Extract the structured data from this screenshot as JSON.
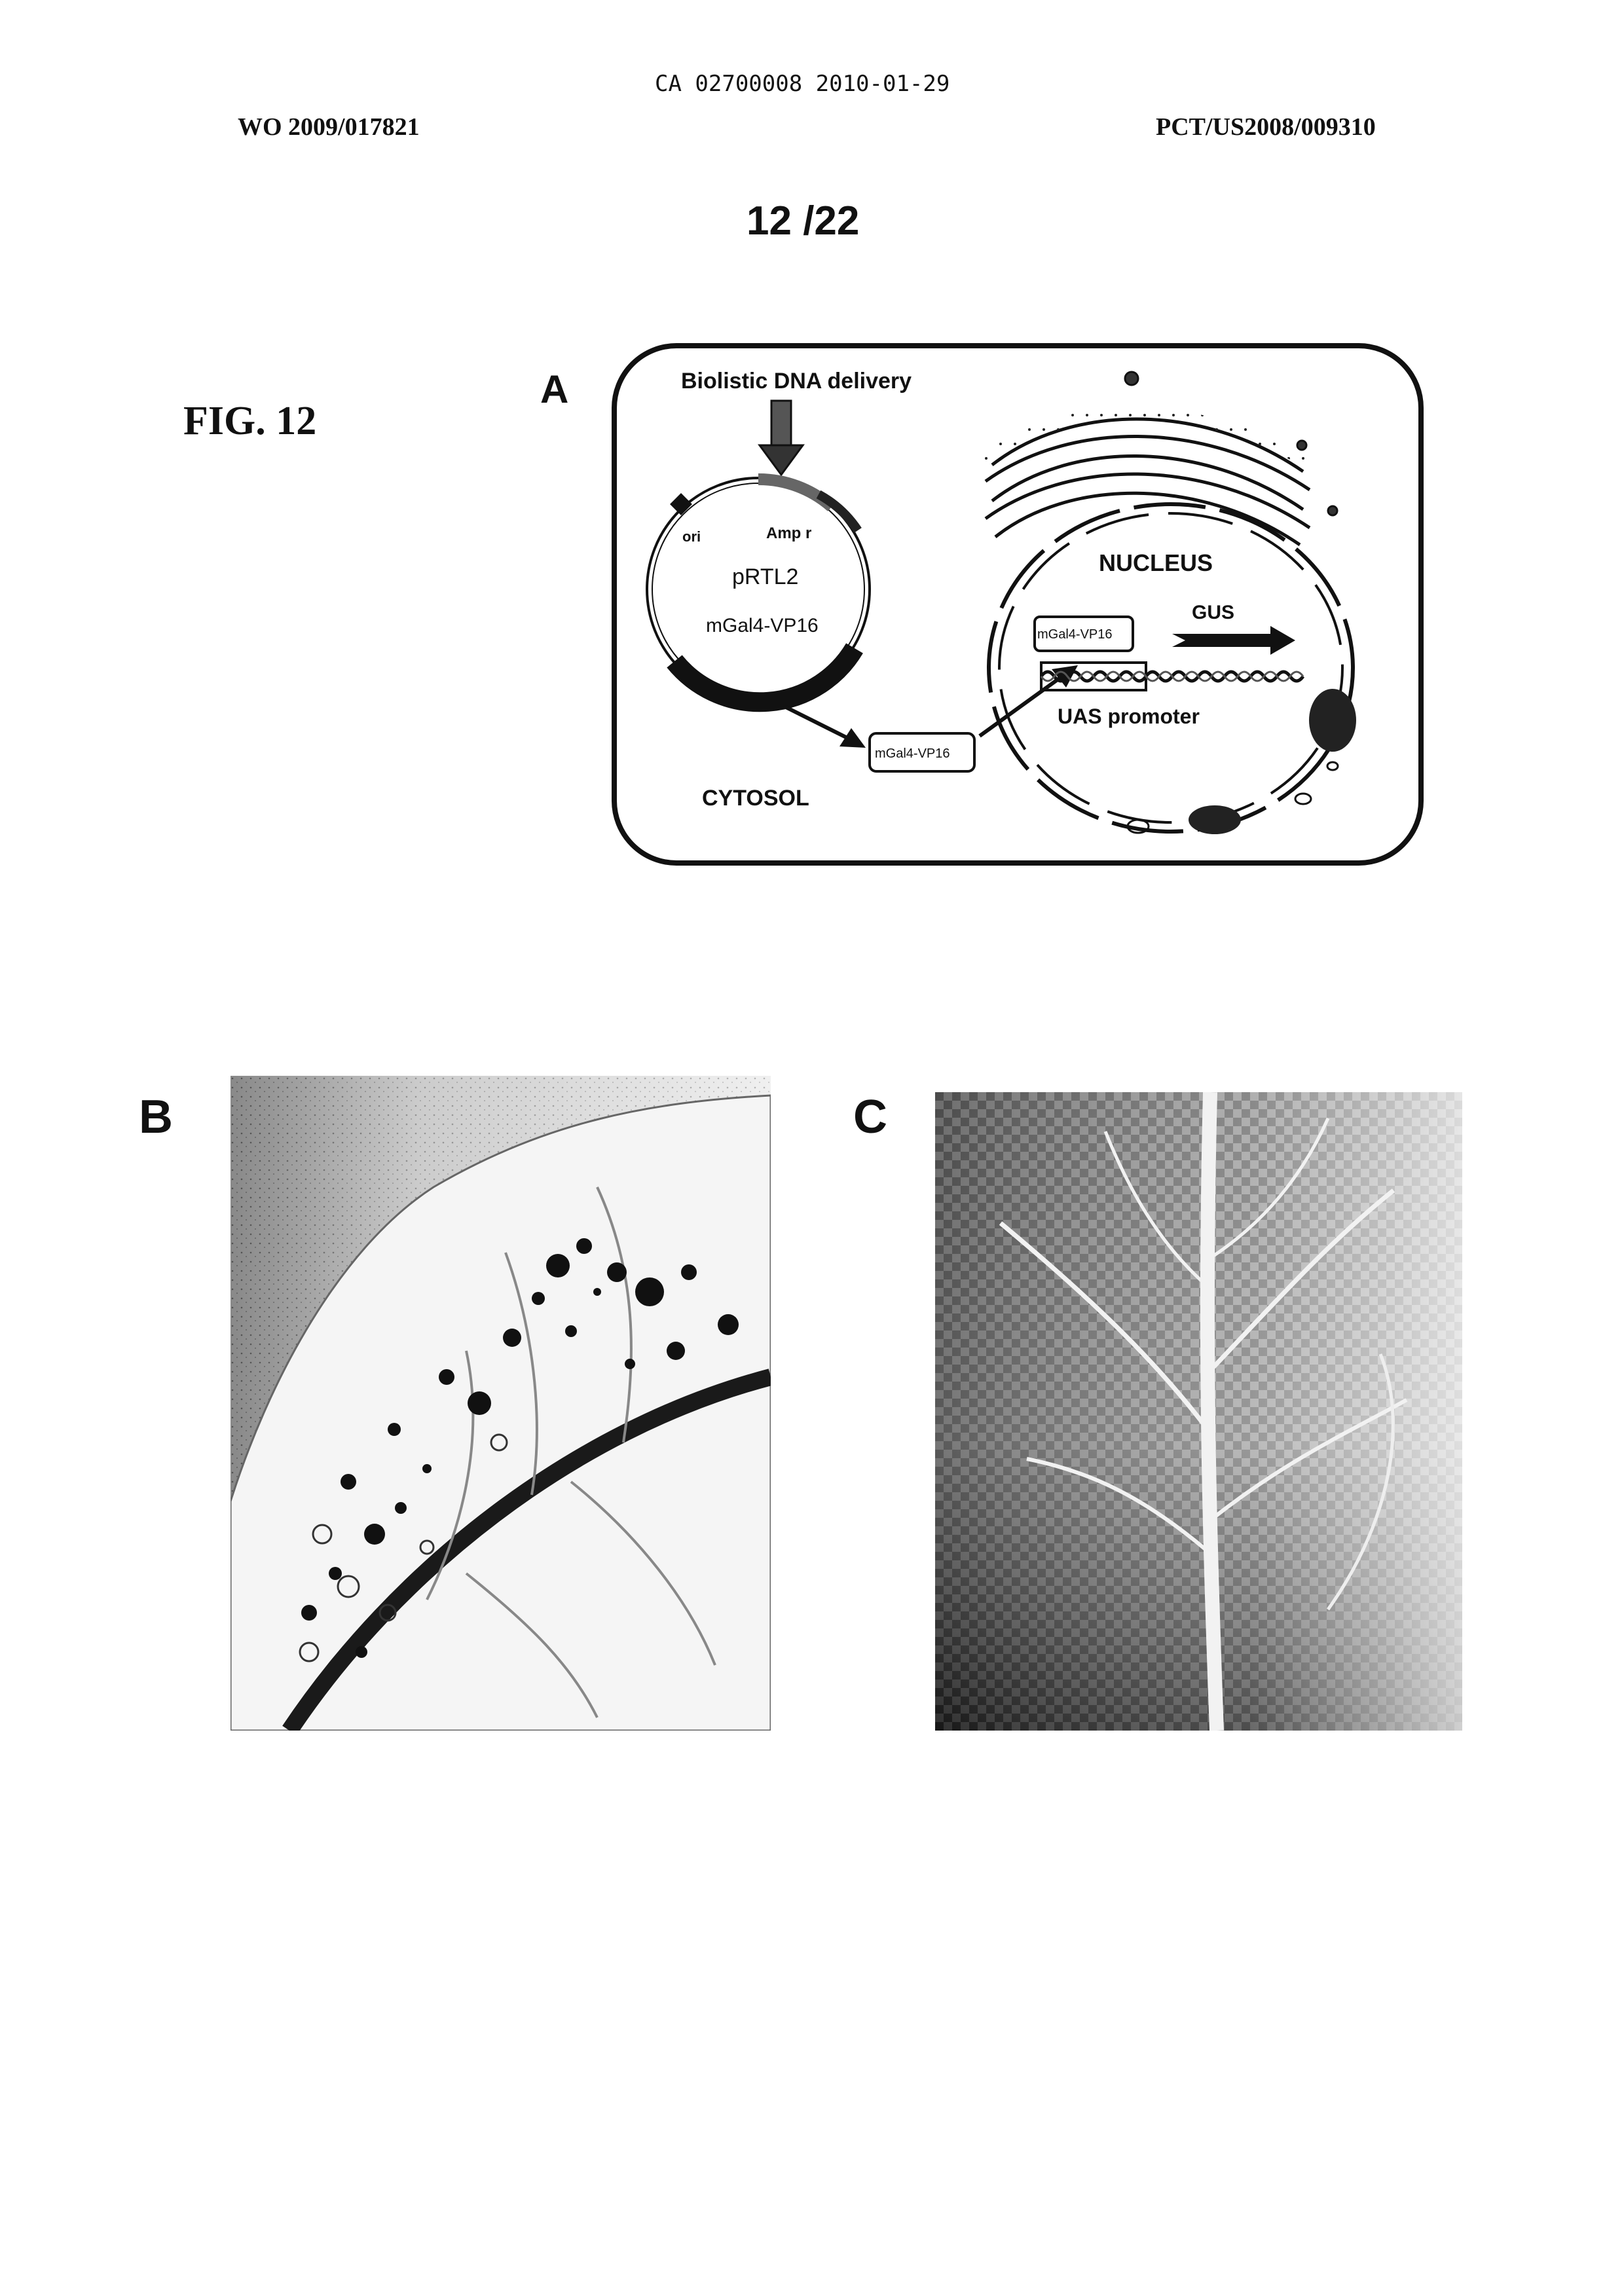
{
  "header": {
    "ca_number": "CA 02700008 2010-01-29",
    "wo_number": "WO 2009/017821",
    "pct_number": "PCT/US2008/009310",
    "sheet": "12 /22"
  },
  "figure": {
    "label": "FIG. 12",
    "panel_a": {
      "letter": "A",
      "delivery_label": "Biolistic DNA delivery",
      "plasmid_name": "pRTL2",
      "plasmid_ori": "ori",
      "plasmid_amp": "Amp r",
      "plasmid_gene": "mGal4-VP16",
      "cytosol_box": "mGal4-VP16",
      "cytosol_label": "CYTOSOL",
      "nucleus_label": "NUCLEUS",
      "nucleus_box": "mGal4-VP16",
      "gus_label": "GUS",
      "uas_label": "UAS promoter"
    },
    "panel_b": {
      "letter": "B"
    },
    "panel_c": {
      "letter": "C"
    }
  }
}
